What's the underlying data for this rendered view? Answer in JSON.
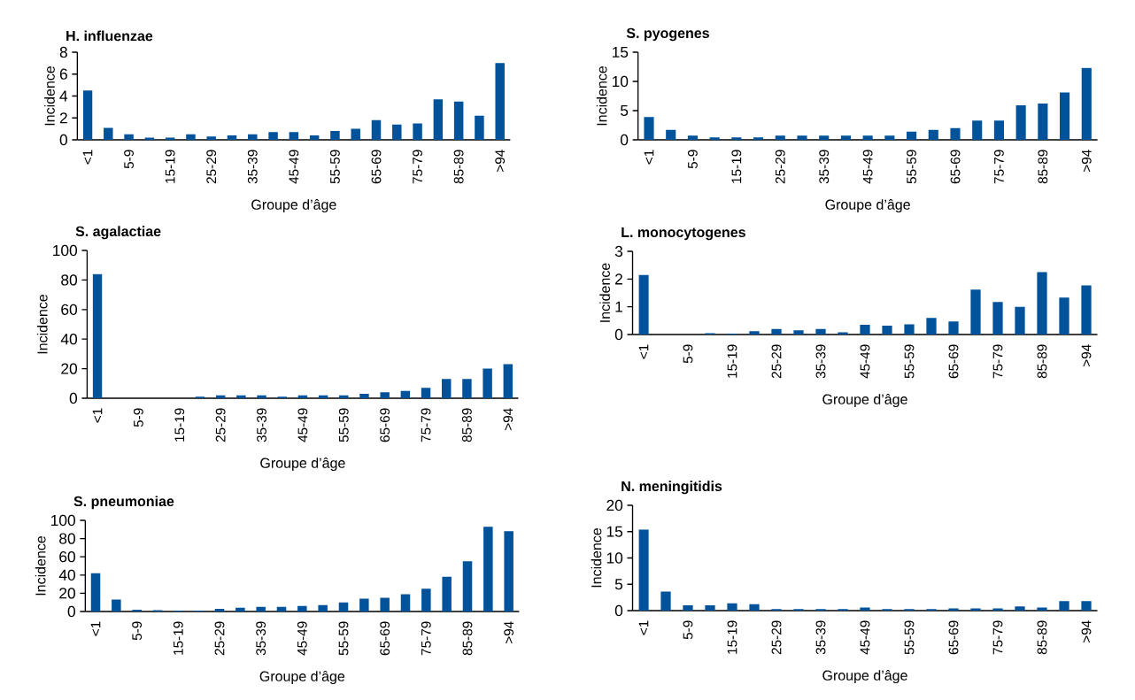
{
  "chart_data": [
    {
      "type": "bar",
      "title": "H. influenzae",
      "xlabel": "Groupe d’âge",
      "ylabel": "Incidence",
      "categories": [
        "<1",
        null,
        "5-9",
        null,
        "15-19",
        null,
        "25-29",
        null,
        "35-39",
        null,
        "45-49",
        null,
        "55-59",
        null,
        "65-69",
        null,
        "75-79",
        null,
        "85-89",
        null,
        ">94"
      ],
      "values": [
        4.5,
        1.1,
        0.5,
        0.2,
        0.2,
        0.5,
        0.3,
        0.4,
        0.5,
        0.7,
        0.7,
        0.4,
        0.8,
        1.0,
        1.8,
        1.4,
        1.5,
        3.7,
        3.5,
        2.2,
        7.0
      ],
      "color": "#00529b",
      "ylim": [
        0,
        8
      ],
      "yticks": [
        0,
        2,
        4,
        6,
        8
      ]
    },
    {
      "type": "bar",
      "title": "S. pyogenes",
      "xlabel": "Groupe d’âge",
      "ylabel": "Incidence",
      "categories": [
        "<1",
        null,
        "5-9",
        null,
        "15-19",
        null,
        "25-29",
        null,
        "35-39",
        null,
        "45-49",
        null,
        "55-59",
        null,
        "65-69",
        null,
        "75-79",
        null,
        "85-89",
        null,
        ">94"
      ],
      "values": [
        3.9,
        1.7,
        0.7,
        0.4,
        0.4,
        0.4,
        0.7,
        0.7,
        0.7,
        0.7,
        0.7,
        0.7,
        1.4,
        1.7,
        2.0,
        3.3,
        3.3,
        5.9,
        6.2,
        8.1,
        12.3
      ],
      "color": "#00529b",
      "ylim": [
        0,
        15
      ],
      "yticks": [
        0,
        5,
        10,
        15
      ]
    },
    {
      "type": "bar",
      "title": "S. agalactiae",
      "xlabel": "Groupe d’âge",
      "ylabel": "Incidence",
      "categories": [
        "<1",
        null,
        "5-9",
        null,
        "15-19",
        null,
        "25-29",
        null,
        "35-39",
        null,
        "45-49",
        null,
        "55-59",
        null,
        "65-69",
        null,
        "75-79",
        null,
        "85-89",
        null,
        ">94"
      ],
      "values": [
        84,
        0,
        0,
        0,
        0,
        1,
        2,
        2,
        2,
        1,
        2,
        2,
        2,
        3,
        4,
        5,
        7,
        13,
        13,
        20,
        23
      ],
      "color": "#00529b",
      "ylim": [
        0,
        100
      ],
      "yticks": [
        0,
        20,
        40,
        60,
        80,
        100
      ]
    },
    {
      "type": "bar",
      "title": "L. monocytogenes",
      "xlabel": "Groupe d’âge",
      "ylabel": "Incidence",
      "categories": [
        "<1",
        null,
        "5-9",
        null,
        "15-19",
        null,
        "25-29",
        null,
        "35-39",
        null,
        "45-49",
        null,
        "55-59",
        null,
        "65-69",
        null,
        "75-79",
        null,
        "85-89",
        null,
        ">94"
      ],
      "values": [
        2.15,
        0,
        0,
        0.05,
        0.03,
        0.12,
        0.2,
        0.15,
        0.2,
        0.08,
        0.35,
        0.32,
        0.37,
        0.6,
        0.47,
        1.62,
        1.17,
        1.0,
        2.25,
        1.33,
        1.77
      ],
      "color": "#00529b",
      "ylim": [
        0,
        3
      ],
      "yticks": [
        0,
        1,
        2,
        3
      ]
    },
    {
      "type": "bar",
      "title": "S. pneumoniae",
      "xlabel": "Groupe d’âge",
      "ylabel": "Incidence",
      "categories": [
        "<1",
        null,
        "5-9",
        null,
        "15-19",
        null,
        "25-29",
        null,
        "35-39",
        null,
        "45-49",
        null,
        "55-59",
        null,
        "65-69",
        null,
        "75-79",
        null,
        "85-89",
        null,
        ">94"
      ],
      "values": [
        42,
        13,
        2,
        1.5,
        1,
        1,
        3,
        4,
        5,
        5,
        6,
        7,
        10,
        14,
        15,
        19,
        25,
        38,
        55,
        93,
        88
      ],
      "color": "#00529b",
      "ylim": [
        0,
        100
      ],
      "yticks": [
        0,
        20,
        40,
        60,
        80,
        100
      ]
    },
    {
      "type": "bar",
      "title": "N. meningitidis",
      "xlabel": "Groupe d’âge",
      "ylabel": "Incidence",
      "categories": [
        "<1",
        null,
        "5-9",
        null,
        "15-19",
        null,
        "25-29",
        null,
        "35-39",
        null,
        "45-49",
        null,
        "55-59",
        null,
        "65-69",
        null,
        "75-79",
        null,
        "85-89",
        null,
        ">94"
      ],
      "values": [
        15.4,
        3.6,
        1.0,
        1.0,
        1.4,
        1.2,
        0.3,
        0.3,
        0.3,
        0.3,
        0.6,
        0.3,
        0.3,
        0.3,
        0.4,
        0.4,
        0.4,
        0.8,
        0.6,
        1.8,
        1.8
      ],
      "color": "#00529b",
      "ylim": [
        0,
        20
      ],
      "yticks": [
        0,
        5,
        10,
        15,
        20
      ]
    }
  ]
}
